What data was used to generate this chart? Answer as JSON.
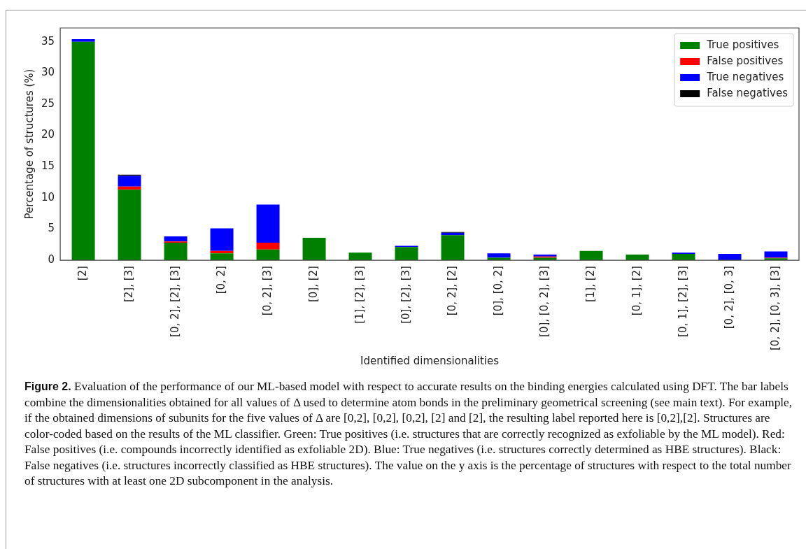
{
  "chart_data": {
    "type": "bar",
    "stacked": true,
    "xlabel": "Identified dimensionalities",
    "ylabel": "Percentage of structures (%)",
    "categories": [
      "[2]",
      "[2], [3]",
      "[0, 2], [2], [3]",
      "[0, 2]",
      "[0, 2], [3]",
      "[0], [2]",
      "[1], [2], [3]",
      "[0], [2], [3]",
      "[0, 2], [2]",
      "[0], [0, 2]",
      "[0], [0, 2], [3]",
      "[1], [2]",
      "[0, 1], [2]",
      "[0, 1], [2], [3]",
      "[0, 2], [0, 3]",
      "[0, 2], [0, 3], [3]"
    ],
    "series": [
      {
        "name": "True positives",
        "color": "#008000",
        "values": [
          35,
          11.3,
          2.8,
          1.1,
          1.7,
          3.6,
          1.2,
          2.1,
          4.0,
          0.4,
          0.4,
          1.5,
          0.9,
          1.0,
          null,
          0.3
        ]
      },
      {
        "name": "False positives",
        "color": "#ff0000",
        "values": [
          0,
          0.5,
          0.2,
          0.4,
          1.1,
          0,
          0,
          0,
          0,
          null,
          0.2,
          0,
          0,
          0,
          0,
          0.1
        ]
      },
      {
        "name": "True negatives",
        "color": "#0000ff",
        "values": [
          0.4,
          1.7,
          0.8,
          3.6,
          6.1,
          0,
          0,
          0.2,
          0.4,
          0.7,
          0.3,
          0,
          0,
          0.2,
          1.0,
          1.0
        ]
      },
      {
        "name": "False negatives",
        "color": "#000000",
        "values": [
          0,
          0.2,
          0,
          0,
          0,
          0,
          0,
          0,
          0.1,
          0,
          0,
          0,
          0,
          0,
          0,
          0
        ]
      }
    ],
    "ylim": [
      0,
      37.2
    ],
    "yticks": [
      0,
      5,
      10,
      15,
      20,
      25,
      30,
      35
    ],
    "grid": false,
    "legend": "top right",
    "annotations": [
      "Figure 2.",
      "Evaluation of the performance of our ML-based model with respect to accurate results on the binding energies calculated using DFT. The bar labels combine the dimensionalities obtained for all values of Δ used to determine atom bonds in the preliminary geometrical screening (see main text). For example, if the obtained dimensions of subunits for the five values of Δ are [0,2], [0,2], [0,2], [2] and [2], the resulting label reported here is [0,2],[2]. Structures are color-coded based on the results of the ML classifier. Green: True positives (i.e. structures that are correctly recognized as exfoliable by the ML model). Red: False positives (i.e. compounds incorrectly identified as exfoliable 2D). Blue: True negatives (i.e. structures correctly determined as HBE structures). Black: False negatives (i.e. structures incorrectly classified as HBE structures). The value on the y axis is the percentage of structures with respect to the total number of structures with at least one 2D subcomponent in the analysis."
    ]
  }
}
